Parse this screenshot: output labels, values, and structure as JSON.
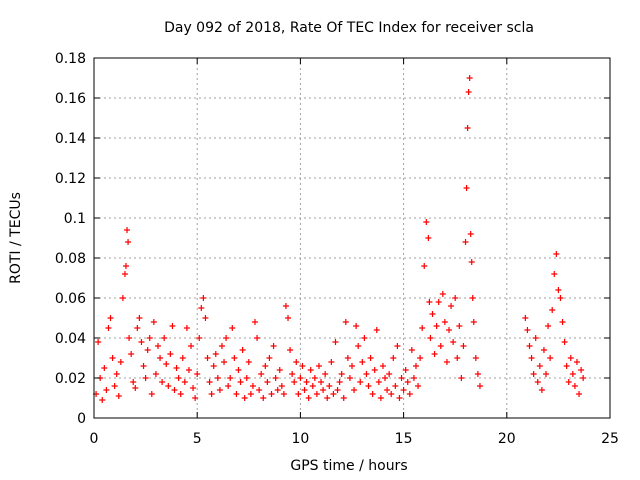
{
  "chart_data": {
    "type": "scatter",
    "title": "Day 092 of 2018, Rate Of TEC Index for receiver scla",
    "xlabel": "GPS time / hours",
    "ylabel": "ROTI / TECUs",
    "xlim": [
      0,
      25
    ],
    "ylim": [
      0,
      0.18
    ],
    "grid": true,
    "marker": "+",
    "color": "#ff0000",
    "x_ticks": [
      0,
      5,
      10,
      15,
      20,
      25
    ],
    "x_tick_labels": [
      "0",
      "5",
      "10",
      "15",
      "20",
      "25"
    ],
    "y_ticks": [
      0,
      0.02,
      0.04,
      0.06,
      0.08,
      0.1,
      0.12,
      0.14,
      0.16,
      0.18
    ],
    "y_tick_labels": [
      "0",
      "0.02",
      "0.04",
      "0.06",
      "0.08",
      "0.1",
      "0.12",
      "0.14",
      "0.16",
      "0.18"
    ],
    "series": [
      {
        "name": "ROTI",
        "points": [
          [
            0.1,
            0.012
          ],
          [
            0.2,
            0.038
          ],
          [
            0.3,
            0.02
          ],
          [
            0.4,
            0.009
          ],
          [
            0.5,
            0.025
          ],
          [
            0.6,
            0.014
          ],
          [
            0.7,
            0.045
          ],
          [
            0.8,
            0.05
          ],
          [
            0.9,
            0.03
          ],
          [
            1.0,
            0.016
          ],
          [
            1.1,
            0.022
          ],
          [
            1.2,
            0.011
          ],
          [
            1.3,
            0.028
          ],
          [
            1.4,
            0.06
          ],
          [
            1.5,
            0.072
          ],
          [
            1.55,
            0.076
          ],
          [
            1.6,
            0.094
          ],
          [
            1.65,
            0.088
          ],
          [
            1.7,
            0.04
          ],
          [
            1.8,
            0.032
          ],
          [
            1.9,
            0.018
          ],
          [
            2.0,
            0.015
          ],
          [
            2.1,
            0.045
          ],
          [
            2.2,
            0.05
          ],
          [
            2.3,
            0.038
          ],
          [
            2.4,
            0.026
          ],
          [
            2.5,
            0.02
          ],
          [
            2.6,
            0.034
          ],
          [
            2.7,
            0.04
          ],
          [
            2.8,
            0.012
          ],
          [
            2.9,
            0.048
          ],
          [
            3.0,
            0.022
          ],
          [
            3.1,
            0.036
          ],
          [
            3.2,
            0.03
          ],
          [
            3.3,
            0.018
          ],
          [
            3.4,
            0.04
          ],
          [
            3.5,
            0.027
          ],
          [
            3.6,
            0.016
          ],
          [
            3.7,
            0.032
          ],
          [
            3.8,
            0.046
          ],
          [
            3.9,
            0.014
          ],
          [
            4.0,
            0.025
          ],
          [
            4.1,
            0.02
          ],
          [
            4.2,
            0.012
          ],
          [
            4.3,
            0.03
          ],
          [
            4.4,
            0.018
          ],
          [
            4.5,
            0.045
          ],
          [
            4.6,
            0.024
          ],
          [
            4.7,
            0.036
          ],
          [
            4.8,
            0.015
          ],
          [
            4.9,
            0.01
          ],
          [
            5.0,
            0.022
          ],
          [
            5.1,
            0.04
          ],
          [
            5.2,
            0.055
          ],
          [
            5.3,
            0.06
          ],
          [
            5.4,
            0.05
          ],
          [
            5.5,
            0.03
          ],
          [
            5.6,
            0.018
          ],
          [
            5.7,
            0.012
          ],
          [
            5.8,
            0.026
          ],
          [
            5.9,
            0.032
          ],
          [
            6.0,
            0.02
          ],
          [
            6.1,
            0.014
          ],
          [
            6.2,
            0.036
          ],
          [
            6.3,
            0.028
          ],
          [
            6.4,
            0.04
          ],
          [
            6.5,
            0.016
          ],
          [
            6.6,
            0.02
          ],
          [
            6.7,
            0.045
          ],
          [
            6.8,
            0.03
          ],
          [
            6.9,
            0.012
          ],
          [
            7.0,
            0.024
          ],
          [
            7.1,
            0.018
          ],
          [
            7.2,
            0.034
          ],
          [
            7.3,
            0.01
          ],
          [
            7.4,
            0.02
          ],
          [
            7.5,
            0.028
          ],
          [
            7.6,
            0.012
          ],
          [
            7.7,
            0.016
          ],
          [
            7.8,
            0.048
          ],
          [
            7.9,
            0.04
          ],
          [
            8.0,
            0.014
          ],
          [
            8.1,
            0.022
          ],
          [
            8.2,
            0.01
          ],
          [
            8.3,
            0.026
          ],
          [
            8.4,
            0.018
          ],
          [
            8.5,
            0.03
          ],
          [
            8.6,
            0.012
          ],
          [
            8.7,
            0.036
          ],
          [
            8.8,
            0.02
          ],
          [
            8.9,
            0.014
          ],
          [
            9.0,
            0.024
          ],
          [
            9.1,
            0.016
          ],
          [
            9.2,
            0.012
          ],
          [
            9.3,
            0.056
          ],
          [
            9.4,
            0.05
          ],
          [
            9.5,
            0.034
          ],
          [
            9.6,
            0.022
          ],
          [
            9.7,
            0.018
          ],
          [
            9.8,
            0.028
          ],
          [
            9.9,
            0.012
          ],
          [
            10.0,
            0.02
          ],
          [
            10.1,
            0.026
          ],
          [
            10.2,
            0.014
          ],
          [
            10.3,
            0.018
          ],
          [
            10.4,
            0.01
          ],
          [
            10.5,
            0.024
          ],
          [
            10.6,
            0.016
          ],
          [
            10.7,
            0.02
          ],
          [
            10.8,
            0.012
          ],
          [
            10.9,
            0.026
          ],
          [
            11.0,
            0.018
          ],
          [
            11.1,
            0.014
          ],
          [
            11.2,
            0.022
          ],
          [
            11.3,
            0.01
          ],
          [
            11.4,
            0.016
          ],
          [
            11.5,
            0.028
          ],
          [
            11.6,
            0.012
          ],
          [
            11.7,
            0.038
          ],
          [
            11.8,
            0.014
          ],
          [
            11.9,
            0.018
          ],
          [
            12.0,
            0.022
          ],
          [
            12.1,
            0.01
          ],
          [
            12.2,
            0.048
          ],
          [
            12.3,
            0.03
          ],
          [
            12.4,
            0.02
          ],
          [
            12.5,
            0.026
          ],
          [
            12.6,
            0.014
          ],
          [
            12.7,
            0.046
          ],
          [
            12.8,
            0.036
          ],
          [
            12.9,
            0.018
          ],
          [
            13.0,
            0.028
          ],
          [
            13.1,
            0.04
          ],
          [
            13.2,
            0.022
          ],
          [
            13.3,
            0.016
          ],
          [
            13.4,
            0.03
          ],
          [
            13.5,
            0.012
          ],
          [
            13.6,
            0.024
          ],
          [
            13.7,
            0.044
          ],
          [
            13.8,
            0.018
          ],
          [
            13.9,
            0.01
          ],
          [
            14.0,
            0.026
          ],
          [
            14.1,
            0.02
          ],
          [
            14.2,
            0.014
          ],
          [
            14.3,
            0.022
          ],
          [
            14.4,
            0.012
          ],
          [
            14.5,
            0.03
          ],
          [
            14.6,
            0.016
          ],
          [
            14.7,
            0.036
          ],
          [
            14.8,
            0.01
          ],
          [
            14.9,
            0.02
          ],
          [
            15.0,
            0.014
          ],
          [
            15.1,
            0.024
          ],
          [
            15.2,
            0.018
          ],
          [
            15.3,
            0.012
          ],
          [
            15.4,
            0.034
          ],
          [
            15.5,
            0.02
          ],
          [
            15.6,
            0.026
          ],
          [
            15.7,
            0.016
          ],
          [
            15.8,
            0.03
          ],
          [
            15.9,
            0.045
          ],
          [
            16.0,
            0.076
          ],
          [
            16.1,
            0.098
          ],
          [
            16.2,
            0.09
          ],
          [
            16.25,
            0.058
          ],
          [
            16.3,
            0.04
          ],
          [
            16.4,
            0.052
          ],
          [
            16.5,
            0.032
          ],
          [
            16.6,
            0.046
          ],
          [
            16.7,
            0.058
          ],
          [
            16.8,
            0.036
          ],
          [
            16.9,
            0.062
          ],
          [
            17.0,
            0.048
          ],
          [
            17.1,
            0.028
          ],
          [
            17.2,
            0.044
          ],
          [
            17.3,
            0.056
          ],
          [
            17.4,
            0.038
          ],
          [
            17.5,
            0.06
          ],
          [
            17.6,
            0.03
          ],
          [
            17.7,
            0.046
          ],
          [
            17.8,
            0.02
          ],
          [
            17.9,
            0.036
          ],
          [
            18.0,
            0.088
          ],
          [
            18.05,
            0.115
          ],
          [
            18.1,
            0.145
          ],
          [
            18.15,
            0.163
          ],
          [
            18.2,
            0.17
          ],
          [
            18.25,
            0.092
          ],
          [
            18.3,
            0.078
          ],
          [
            18.35,
            0.06
          ],
          [
            18.4,
            0.048
          ],
          [
            18.5,
            0.03
          ],
          [
            18.6,
            0.022
          ],
          [
            18.7,
            0.016
          ],
          [
            20.9,
            0.05
          ],
          [
            21.0,
            0.044
          ],
          [
            21.1,
            0.036
          ],
          [
            21.2,
            0.03
          ],
          [
            21.3,
            0.022
          ],
          [
            21.4,
            0.04
          ],
          [
            21.5,
            0.018
          ],
          [
            21.6,
            0.026
          ],
          [
            21.7,
            0.014
          ],
          [
            21.8,
            0.034
          ],
          [
            21.9,
            0.022
          ],
          [
            22.0,
            0.046
          ],
          [
            22.1,
            0.03
          ],
          [
            22.2,
            0.054
          ],
          [
            22.3,
            0.072
          ],
          [
            22.4,
            0.082
          ],
          [
            22.5,
            0.064
          ],
          [
            22.6,
            0.06
          ],
          [
            22.7,
            0.048
          ],
          [
            22.8,
            0.038
          ],
          [
            22.9,
            0.026
          ],
          [
            23.0,
            0.018
          ],
          [
            23.1,
            0.03
          ],
          [
            23.2,
            0.022
          ],
          [
            23.3,
            0.016
          ],
          [
            23.4,
            0.028
          ],
          [
            23.5,
            0.012
          ],
          [
            23.6,
            0.024
          ],
          [
            23.7,
            0.02
          ]
        ]
      }
    ]
  }
}
